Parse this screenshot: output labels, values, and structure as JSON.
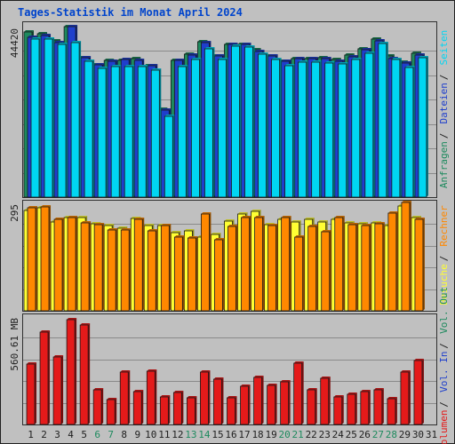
{
  "title": "Tages-Statistik im Monat April 2024",
  "colors": {
    "title": "#0044cc",
    "frame": "#202020",
    "background": "#c0c0c0",
    "anfragen": "#1e8a5e",
    "dateien": "#1f3fcc",
    "seiten": "#00d6f2",
    "besuche": "#ffff33",
    "rechner": "#ff8800",
    "volumen": "#e41a1a",
    "vol_in": "#1f3fcc",
    "vol_out": "#1e8a5e",
    "weekend_label": "#1e8a5e",
    "weekday_label": "#202020"
  },
  "chart_data": [
    {
      "type": "bar",
      "panel": "hits",
      "y_max_label": "44420",
      "ylim": [
        0,
        44420
      ],
      "right_labels": [
        "Anfragen",
        "Dateien",
        "Seiten"
      ],
      "categories": [
        "1",
        "2",
        "3",
        "4",
        "5",
        "6",
        "7",
        "8",
        "9",
        "10",
        "11",
        "12",
        "13",
        "14",
        "15",
        "16",
        "17",
        "18",
        "19",
        "20",
        "21",
        "22",
        "23",
        "24",
        "25",
        "26",
        "27",
        "28",
        "29",
        "30"
      ],
      "series": [
        {
          "name": "Anfragen",
          "values": [
            43000,
            42500,
            40700,
            44420,
            36400,
            34500,
            35600,
            35600,
            36000,
            34300,
            22800,
            35600,
            37300,
            40500,
            36700,
            39800,
            39700,
            38300,
            36800,
            35400,
            36200,
            36200,
            36400,
            35800,
            37000,
            38600,
            41100,
            36900,
            35200,
            37500
          ]
        },
        {
          "name": "Dateien",
          "values": [
            41700,
            42200,
            40300,
            44420,
            36300,
            34500,
            35300,
            35800,
            35600,
            34300,
            22600,
            35600,
            37000,
            40300,
            36800,
            39800,
            39700,
            37900,
            36800,
            35400,
            36000,
            36000,
            36200,
            35500,
            36600,
            38400,
            40800,
            36100,
            35000,
            37000
          ]
        },
        {
          "name": "Seiten",
          "values": [
            41200,
            41200,
            39700,
            40200,
            35400,
            33500,
            34000,
            34000,
            34000,
            33000,
            21100,
            34000,
            35800,
            38600,
            35800,
            39400,
            39000,
            37200,
            35800,
            34200,
            35100,
            35100,
            35000,
            34600,
            35800,
            37400,
            40000,
            35800,
            33700,
            36300
          ]
        }
      ]
    },
    {
      "type": "bar",
      "panel": "visits",
      "y_max_label": "295",
      "ylim": [
        0,
        295
      ],
      "right_labels": [
        "Besuche",
        "Rechner"
      ],
      "categories": [
        "1",
        "2",
        "3",
        "4",
        "5",
        "6",
        "7",
        "8",
        "9",
        "10",
        "11",
        "12",
        "13",
        "14",
        "15",
        "16",
        "17",
        "18",
        "19",
        "20",
        "21",
        "22",
        "23",
        "24",
        "25",
        "26",
        "27",
        "28",
        "29",
        "30"
      ],
      "series": [
        {
          "name": "Besuche",
          "values": [
            274,
            280,
            242,
            255,
            255,
            238,
            232,
            224,
            252,
            232,
            232,
            212,
            218,
            201,
            208,
            245,
            263,
            272,
            234,
            250,
            242,
            250,
            242,
            249,
            240,
            238,
            240,
            232,
            286,
            255
          ]
        },
        {
          "name": "Rechner",
          "values": [
            281,
            284,
            250,
            255,
            239,
            234,
            220,
            220,
            249,
            218,
            232,
            200,
            199,
            264,
            194,
            230,
            253,
            253,
            233,
            253,
            200,
            230,
            216,
            254,
            235,
            233,
            236,
            266,
            295,
            249
          ]
        }
      ]
    },
    {
      "type": "bar",
      "panel": "volume",
      "y_max_label": "560.61 MB",
      "ylim": [
        0,
        560.61
      ],
      "right_labels": [
        "Volumen",
        "Vol. In",
        "Vol. Out"
      ],
      "categories": [
        "1",
        "2",
        "3",
        "4",
        "5",
        "6",
        "7",
        "8",
        "9",
        "10",
        "11",
        "12",
        "13",
        "14",
        "15",
        "16",
        "17",
        "18",
        "19",
        "20",
        "21",
        "22",
        "23",
        "24",
        "25",
        "26",
        "27",
        "28",
        "29",
        "30"
      ],
      "series": [
        {
          "name": "Volumen",
          "values": [
            311,
            477,
            348,
            543,
            515,
            177,
            130,
            270,
            170,
            278,
            144,
            164,
            139,
            273,
            233,
            139,
            199,
            242,
            200,
            220,
            317,
            178,
            238,
            142,
            154,
            169,
            179,
            132,
            269,
            331
          ]
        }
      ]
    }
  ],
  "x_axis": {
    "labels": [
      "1",
      "2",
      "3",
      "4",
      "5",
      "6",
      "7",
      "8",
      "9",
      "10",
      "11",
      "12",
      "13",
      "14",
      "15",
      "16",
      "17",
      "18",
      "19",
      "20",
      "21",
      "22",
      "23",
      "24",
      "25",
      "26",
      "27",
      "28",
      "29",
      "30",
      "31"
    ],
    "weekend_days": [
      6,
      7,
      13,
      14,
      20,
      21,
      27,
      28
    ]
  }
}
